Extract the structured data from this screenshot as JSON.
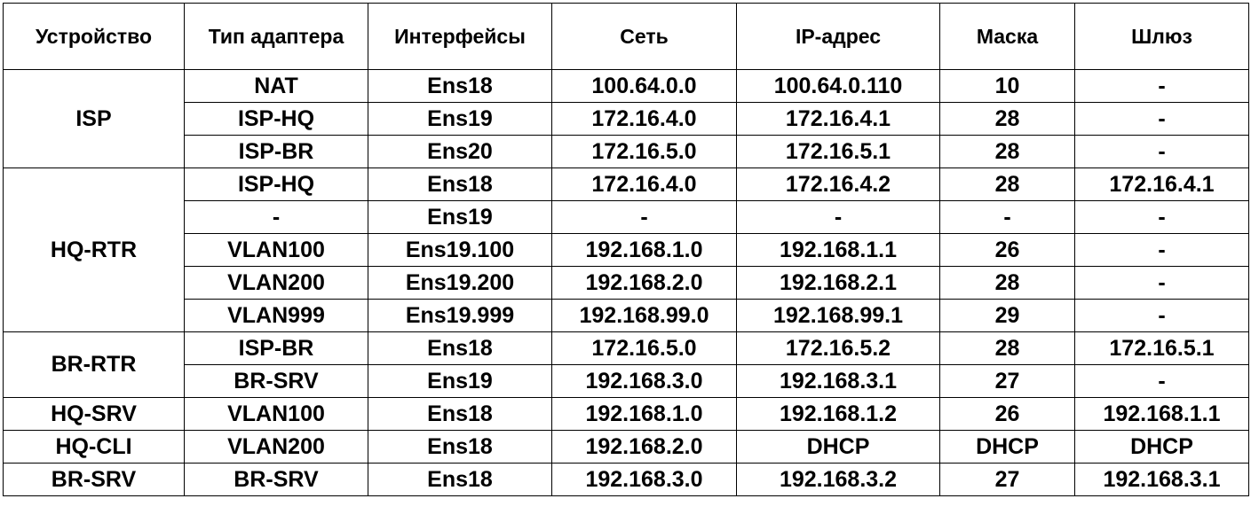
{
  "table": {
    "headers": [
      "Устройство",
      "Тип адаптера",
      "Интерфейсы",
      "Сеть",
      "IP-адрес",
      "Маска",
      "Шлюз"
    ],
    "groups": [
      {
        "device": "ISP",
        "rows": [
          [
            "NAT",
            "Ens18",
            "100.64.0.0",
            "100.64.0.110",
            "10",
            "-"
          ],
          [
            "ISP-HQ",
            "Ens19",
            "172.16.4.0",
            "172.16.4.1",
            "28",
            "-"
          ],
          [
            "ISP-BR",
            "Ens20",
            "172.16.5.0",
            "172.16.5.1",
            "28",
            "-"
          ]
        ]
      },
      {
        "device": "HQ-RTR",
        "rows": [
          [
            "ISP-HQ",
            "Ens18",
            "172.16.4.0",
            "172.16.4.2",
            "28",
            "172.16.4.1"
          ],
          [
            "-",
            "Ens19",
            "-",
            "-",
            "-",
            "-"
          ],
          [
            "VLAN100",
            "Ens19.100",
            "192.168.1.0",
            "192.168.1.1",
            "26",
            "-"
          ],
          [
            "VLAN200",
            "Ens19.200",
            "192.168.2.0",
            "192.168.2.1",
            "28",
            "-"
          ],
          [
            "VLAN999",
            "Ens19.999",
            "192.168.99.0",
            "192.168.99.1",
            "29",
            "-"
          ]
        ]
      },
      {
        "device": "BR-RTR",
        "rows": [
          [
            "ISP-BR",
            "Ens18",
            "172.16.5.0",
            "172.16.5.2",
            "28",
            "172.16.5.1"
          ],
          [
            "BR-SRV",
            "Ens19",
            "192.168.3.0",
            "192.168.3.1",
            "27",
            "-"
          ]
        ]
      },
      {
        "device": "HQ-SRV",
        "rows": [
          [
            "VLAN100",
            "Ens18",
            "192.168.1.0",
            "192.168.1.2",
            "26",
            "192.168.1.1"
          ]
        ]
      },
      {
        "device": "HQ-CLI",
        "rows": [
          [
            "VLAN200",
            "Ens18",
            "192.168.2.0",
            "DHCP",
            "DHCP",
            "DHCP"
          ]
        ]
      },
      {
        "device": "BR-SRV",
        "rows": [
          [
            "BR-SRV",
            "Ens18",
            "192.168.3.0",
            "192.168.3.2",
            "27",
            "192.168.3.1"
          ]
        ]
      }
    ]
  }
}
